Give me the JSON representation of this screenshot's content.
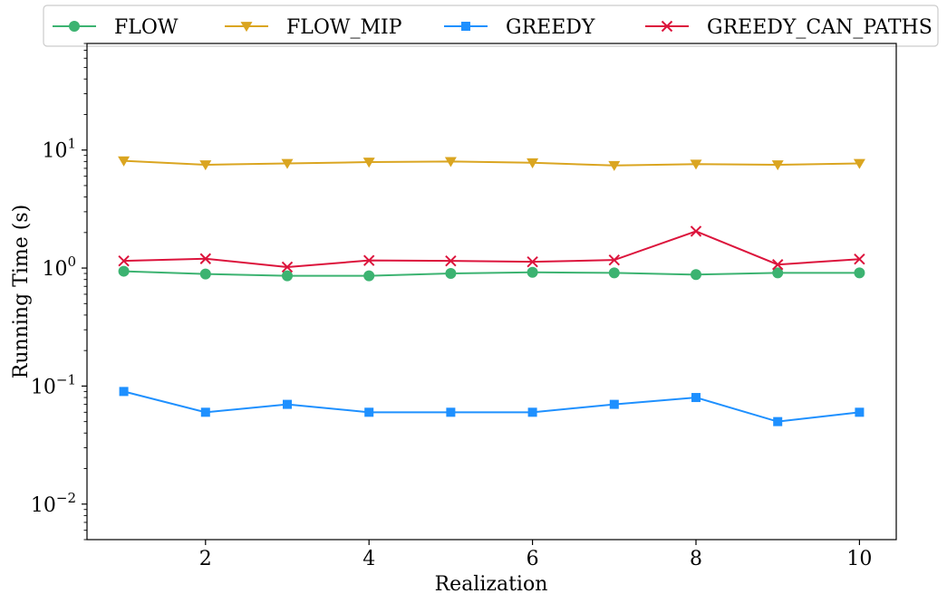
{
  "chart_data": {
    "type": "line",
    "xlabel": "Realization",
    "ylabel": "Running Time (s)",
    "x": [
      1,
      2,
      3,
      4,
      5,
      6,
      7,
      8,
      9,
      10
    ],
    "xlim": [
      0.55,
      10.45
    ],
    "ylim": [
      0.005,
      80
    ],
    "yscale": "log",
    "grid": false,
    "legend_position": "top",
    "x_ticks": [
      2,
      4,
      6,
      8,
      10
    ],
    "x_tick_labels": [
      "2",
      "4",
      "6",
      "8",
      "10"
    ],
    "y_ticks": [
      0.01,
      0.1,
      1,
      10
    ],
    "y_tick_labels": [
      {
        "base": "10",
        "exp": "−2"
      },
      {
        "base": "10",
        "exp": "−1"
      },
      {
        "base": "10",
        "exp": "0"
      },
      {
        "base": "10",
        "exp": "1"
      }
    ],
    "series": [
      {
        "name": "FLOW",
        "color": "#3cb371",
        "marker": "circle",
        "values": [
          0.94,
          0.89,
          0.86,
          0.86,
          0.9,
          0.92,
          0.91,
          0.88,
          0.91,
          0.91
        ]
      },
      {
        "name": "FLOW_MIP",
        "color": "#daa520",
        "marker": "triangle-down",
        "values": [
          8.1,
          7.5,
          7.7,
          7.9,
          8.0,
          7.8,
          7.4,
          7.6,
          7.5,
          7.7
        ]
      },
      {
        "name": "GREEDY",
        "color": "#1e90ff",
        "marker": "square",
        "values": [
          0.09,
          0.06,
          0.07,
          0.06,
          0.06,
          0.06,
          0.07,
          0.08,
          0.05,
          0.06
        ]
      },
      {
        "name": "GREEDY_CAN_PATHS",
        "color": "#dc143c",
        "marker": "x",
        "values": [
          1.15,
          1.2,
          1.02,
          1.16,
          1.15,
          1.13,
          1.17,
          2.05,
          1.07,
          1.19
        ]
      }
    ]
  }
}
